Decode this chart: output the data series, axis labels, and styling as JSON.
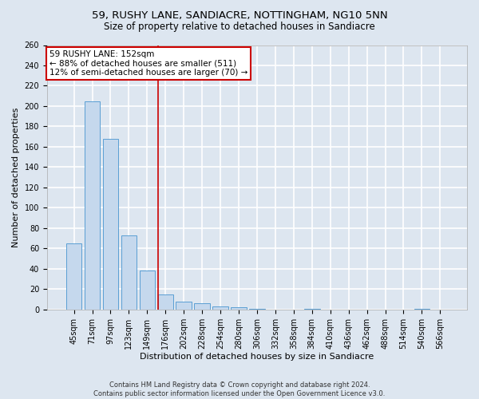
{
  "title": "59, RUSHY LANE, SANDIACRE, NOTTINGHAM, NG10 5NN",
  "subtitle": "Size of property relative to detached houses in Sandiacre",
  "xlabel": "Distribution of detached houses by size in Sandiacre",
  "ylabel": "Number of detached properties",
  "categories": [
    "45sqm",
    "71sqm",
    "97sqm",
    "123sqm",
    "149sqm",
    "176sqm",
    "202sqm",
    "228sqm",
    "254sqm",
    "280sqm",
    "306sqm",
    "332sqm",
    "358sqm",
    "384sqm",
    "410sqm",
    "436sqm",
    "462sqm",
    "488sqm",
    "514sqm",
    "540sqm",
    "566sqm"
  ],
  "values": [
    65,
    205,
    168,
    73,
    38,
    15,
    8,
    6,
    3,
    2,
    1,
    0,
    0,
    1,
    0,
    0,
    0,
    0,
    0,
    1,
    0
  ],
  "bar_color": "#c5d8ed",
  "bar_edge_color": "#5a9fd4",
  "background_color": "#dde6f0",
  "grid_color": "#ffffff",
  "red_line_x": 4.61,
  "annotation_title": "59 RUSHY LANE: 152sqm",
  "annotation_line1": "← 88% of detached houses are smaller (511)",
  "annotation_line2": "12% of semi-detached houses are larger (70) →",
  "annotation_box_color": "#ffffff",
  "annotation_box_edge": "#cc0000",
  "red_line_color": "#cc0000",
  "footer_line1": "Contains HM Land Registry data © Crown copyright and database right 2024.",
  "footer_line2": "Contains public sector information licensed under the Open Government Licence v3.0.",
  "ylim": [
    0,
    260
  ],
  "title_fontsize": 9.5,
  "subtitle_fontsize": 8.5,
  "tick_fontsize": 7,
  "ylabel_fontsize": 8,
  "xlabel_fontsize": 8,
  "footer_fontsize": 6,
  "annotation_fontsize": 7.5
}
